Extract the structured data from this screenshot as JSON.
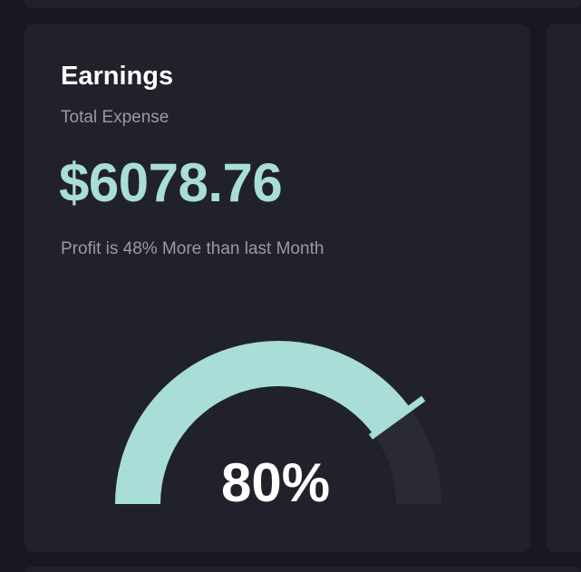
{
  "card": {
    "title": "Earnings",
    "subtitle": "Total Expense",
    "amount": "$6078.76",
    "note": "Profit is 48% More than last Month"
  },
  "gauge": {
    "label": "80%",
    "percent": 80,
    "fill_color": "#a9ddd8",
    "track_color": "#2a2a33"
  }
}
